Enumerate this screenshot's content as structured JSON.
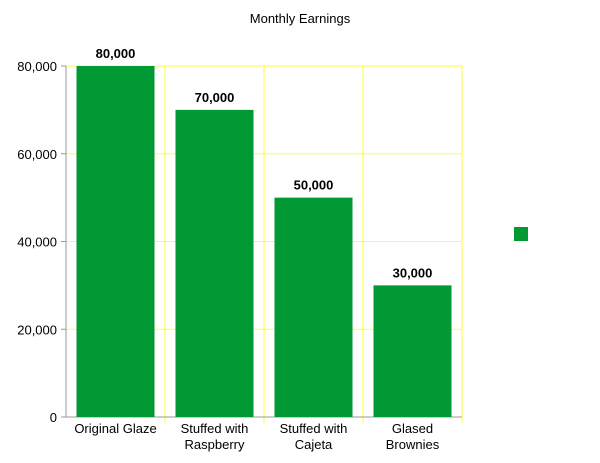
{
  "chart_data": {
    "type": "bar",
    "title": "Monthly Earnings",
    "categories": [
      [
        "Original Glaze"
      ],
      [
        "Stuffed with",
        "Raspberry"
      ],
      [
        "Stuffed with",
        "Cajeta"
      ],
      [
        "Glased",
        "Brownies"
      ]
    ],
    "values": [
      80000,
      70000,
      50000,
      30000
    ],
    "data_labels": [
      "80,000",
      "70,000",
      "50,000",
      "30,000"
    ],
    "y_ticks": [
      0,
      20000,
      40000,
      60000,
      80000
    ],
    "y_tick_labels": [
      "0",
      "20,000",
      "40,000",
      "60,000",
      "80,000"
    ],
    "ylim": [
      0,
      80000
    ],
    "grid": true,
    "legend_position": "right",
    "legend_entries": [
      ""
    ],
    "colors": {
      "bar": "#009933",
      "grid": "#ffff33",
      "axis": "#999999"
    }
  }
}
